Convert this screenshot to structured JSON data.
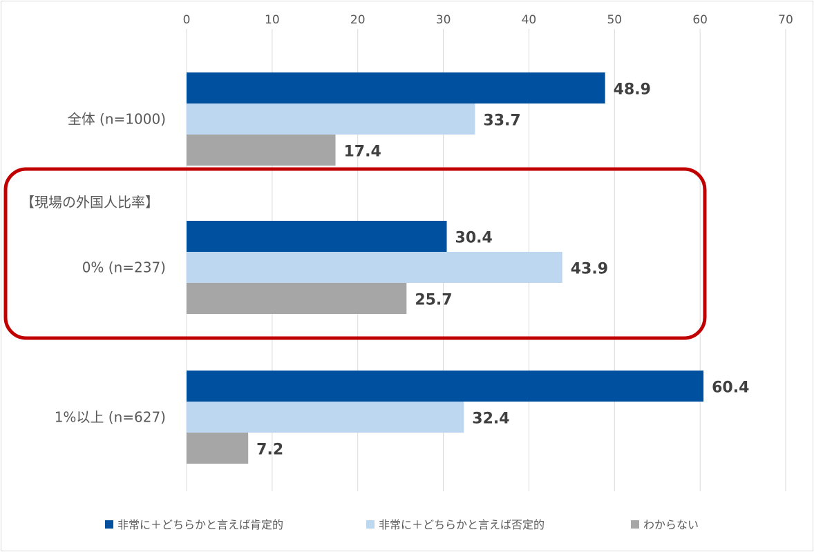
{
  "chart_data": {
    "type": "bar",
    "orientation": "horizontal",
    "categories": [
      "全体 (n=1000)",
      "0% (n=237)",
      "1%以上 (n=627)"
    ],
    "group_header": "【現場の外国人比率】",
    "series": [
      {
        "name": "非常に＋どちらかと言えば肯定的",
        "color": "#0050a0",
        "values": [
          48.9,
          30.4,
          60.4
        ]
      },
      {
        "name": "非常に＋どちらかと言えば否定的",
        "color": "#bdd7f1",
        "values": [
          33.7,
          43.9,
          32.4
        ]
      },
      {
        "name": "わからない",
        "color": "#a6a6a6",
        "values": [
          17.4,
          25.7,
          7.2
        ]
      }
    ],
    "xlim": [
      0,
      70
    ],
    "xticks": [
      0,
      10,
      20,
      30,
      40,
      50,
      60,
      70
    ],
    "axis_position": "top",
    "grid": true,
    "legend_position": "bottom",
    "highlight_color": "#c00000",
    "highlighted_category": "0% (n=237)"
  }
}
